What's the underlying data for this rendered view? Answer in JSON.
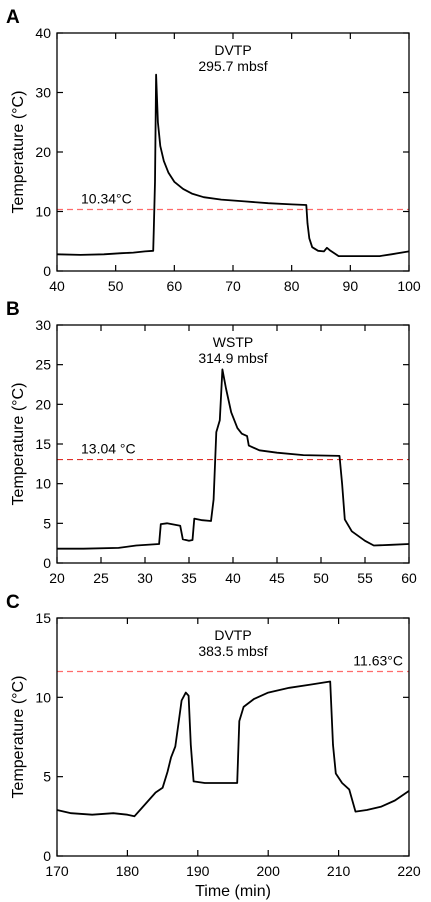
{
  "chart_data": [
    {
      "panel_label": "A",
      "type": "line",
      "title": "DVTP",
      "subtitle": "295.7 mbsf",
      "xlabel": "",
      "ylabel": "Temperature (°C)",
      "xlim": [
        40,
        100
      ],
      "ylim": [
        0,
        40
      ],
      "xticks": [
        40,
        50,
        60,
        70,
        80,
        90,
        100
      ],
      "yticks": [
        0,
        10,
        20,
        30,
        40
      ],
      "grid": false,
      "reference_line": {
        "y": 10.34,
        "label": "10.34°C",
        "color": "#ff6b6b"
      },
      "series": [
        {
          "color": "#000000",
          "points": [
            [
              40,
              2.8
            ],
            [
              44,
              2.7
            ],
            [
              48,
              2.8
            ],
            [
              51,
              3.0
            ],
            [
              53,
              3.1
            ],
            [
              55,
              3.3
            ],
            [
              56.4,
              3.4
            ],
            [
              56.5,
              7.0
            ],
            [
              56.7,
              15.0
            ],
            [
              56.9,
              33.0
            ],
            [
              57.2,
              25.0
            ],
            [
              57.6,
              21.0
            ],
            [
              58.2,
              18.5
            ],
            [
              59,
              16.5
            ],
            [
              60,
              15.0
            ],
            [
              61.5,
              13.8
            ],
            [
              63,
              13.0
            ],
            [
              65,
              12.4
            ],
            [
              68,
              12.0
            ],
            [
              72,
              11.7
            ],
            [
              76,
              11.4
            ],
            [
              80,
              11.2
            ],
            [
              82.5,
              11.1
            ],
            [
              82.7,
              8.0
            ],
            [
              83,
              5.5
            ],
            [
              83.5,
              4.0
            ],
            [
              84.5,
              3.4
            ],
            [
              85.5,
              3.3
            ],
            [
              86,
              3.9
            ],
            [
              86.5,
              3.5
            ],
            [
              88,
              2.5
            ],
            [
              91,
              2.5
            ],
            [
              95,
              2.5
            ],
            [
              97,
              2.8
            ],
            [
              100,
              3.3
            ]
          ]
        }
      ]
    },
    {
      "panel_label": "B",
      "type": "line",
      "title": "WSTP",
      "subtitle": "314.9 mbsf",
      "xlabel": "",
      "ylabel": "Temperature (°C)",
      "xlim": [
        20,
        60
      ],
      "ylim": [
        0,
        30
      ],
      "xticks": [
        20,
        25,
        30,
        35,
        40,
        45,
        50,
        55,
        60
      ],
      "yticks": [
        0,
        5,
        10,
        15,
        20,
        25,
        30
      ],
      "grid": false,
      "reference_line": {
        "y": 13.04,
        "label": "13.04 °C",
        "color": "#e0302a"
      },
      "series": [
        {
          "color": "#000000",
          "points": [
            [
              20,
              1.8
            ],
            [
              23,
              1.8
            ],
            [
              27,
              1.9
            ],
            [
              29,
              2.2
            ],
            [
              31.6,
              2.4
            ],
            [
              31.8,
              4.9
            ],
            [
              32.5,
              5.0
            ],
            [
              34.0,
              4.7
            ],
            [
              34.3,
              3.0
            ],
            [
              35,
              2.8
            ],
            [
              35.4,
              2.9
            ],
            [
              35.6,
              5.6
            ],
            [
              36.5,
              5.4
            ],
            [
              37.5,
              5.3
            ],
            [
              37.8,
              8.0
            ],
            [
              38.1,
              16.5
            ],
            [
              38.5,
              18.0
            ],
            [
              38.8,
              24.4
            ],
            [
              39.2,
              22.0
            ],
            [
              39.8,
              19.0
            ],
            [
              40.5,
              17.0
            ],
            [
              41.0,
              16.3
            ],
            [
              41.6,
              16.0
            ],
            [
              41.8,
              14.8
            ],
            [
              43,
              14.2
            ],
            [
              45,
              13.9
            ],
            [
              48,
              13.6
            ],
            [
              52.1,
              13.5
            ],
            [
              52.4,
              10.0
            ],
            [
              52.7,
              5.5
            ],
            [
              53.5,
              4.0
            ],
            [
              55,
              2.8
            ],
            [
              56,
              2.2
            ],
            [
              58,
              2.3
            ],
            [
              60,
              2.4
            ]
          ]
        }
      ]
    },
    {
      "panel_label": "C",
      "type": "line",
      "title": "DVTP",
      "subtitle": "383.5 mbsf",
      "xlabel": "Time (min)",
      "ylabel": "Temperature (°C)",
      "xlim": [
        170,
        220
      ],
      "ylim": [
        0,
        15
      ],
      "xticks": [
        170,
        180,
        190,
        200,
        210,
        220
      ],
      "yticks": [
        0,
        5,
        10,
        15
      ],
      "grid": false,
      "reference_line": {
        "y": 11.63,
        "label": "11.63°C",
        "color": "#ff6b6b"
      },
      "series": [
        {
          "color": "#000000",
          "points": [
            [
              170,
              2.9
            ],
            [
              172,
              2.7
            ],
            [
              175,
              2.6
            ],
            [
              178,
              2.7
            ],
            [
              180,
              2.6
            ],
            [
              181,
              2.5
            ],
            [
              182,
              3.0
            ],
            [
              183,
              3.5
            ],
            [
              184,
              4.0
            ],
            [
              185,
              4.3
            ],
            [
              185.7,
              5.3
            ],
            [
              186.2,
              6.2
            ],
            [
              186.8,
              6.9
            ],
            [
              187.3,
              8.5
            ],
            [
              187.7,
              9.8
            ],
            [
              188.3,
              10.3
            ],
            [
              188.7,
              10.1
            ],
            [
              189.0,
              7.0
            ],
            [
              189.4,
              4.7
            ],
            [
              191,
              4.6
            ],
            [
              193,
              4.6
            ],
            [
              195.6,
              4.6
            ],
            [
              195.9,
              8.5
            ],
            [
              196.5,
              9.4
            ],
            [
              198,
              9.9
            ],
            [
              200,
              10.3
            ],
            [
              203,
              10.6
            ],
            [
              206,
              10.8
            ],
            [
              208.8,
              11.0
            ],
            [
              209.2,
              7.0
            ],
            [
              209.6,
              5.2
            ],
            [
              210.5,
              4.6
            ],
            [
              211.5,
              4.2
            ],
            [
              212.4,
              2.8
            ],
            [
              214,
              2.9
            ],
            [
              216,
              3.1
            ],
            [
              218,
              3.5
            ],
            [
              220,
              4.1
            ]
          ]
        }
      ]
    }
  ]
}
